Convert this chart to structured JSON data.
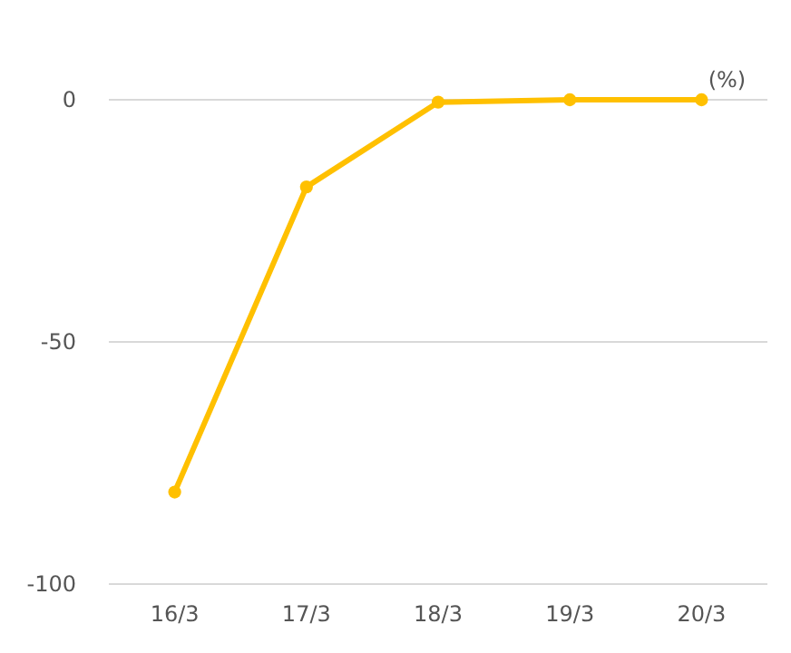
{
  "chart_data": {
    "type": "line",
    "ylabel": "(%)",
    "categories": [
      "16/3",
      "17/3",
      "18/3",
      "19/3",
      "20/3"
    ],
    "series": [
      {
        "color": "#ffc000",
        "values": [
          -81,
          -18,
          -0.5,
          0,
          0
        ]
      }
    ],
    "ylim": [
      -100,
      0
    ],
    "yticks": [
      -100,
      -50,
      0
    ],
    "grid": "y",
    "marker": "circle",
    "line_style": "solid"
  }
}
